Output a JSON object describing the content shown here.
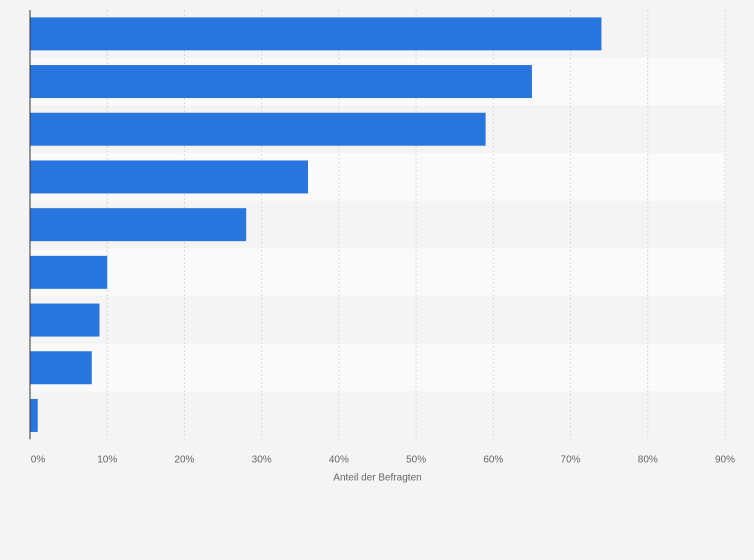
{
  "chart_data": {
    "type": "bar",
    "orientation": "horizontal",
    "categories": [
      "",
      "",
      "",
      "",
      "",
      "",
      "",
      "",
      ""
    ],
    "values": [
      74,
      65,
      59,
      36,
      28,
      10,
      9,
      8,
      1
    ],
    "xlabel": "Anteil der Befragten",
    "ylabel": "",
    "xlim": [
      0,
      90
    ],
    "xticks": [
      0,
      10,
      20,
      30,
      40,
      50,
      60,
      70,
      80,
      90
    ],
    "xtick_labels": [
      "0%",
      "10%",
      "20%",
      "30%",
      "40%",
      "50%",
      "60%",
      "70%",
      "80%",
      "90%"
    ],
    "grid": true,
    "legend": "none"
  },
  "colors": {
    "bar": "#2876dd",
    "background": "#f4f4f4",
    "band_light": "#fafafa",
    "band_dark": "#f4f4f4",
    "grid": "#d9d9d9",
    "axis": "#333333",
    "text": "#666666"
  }
}
